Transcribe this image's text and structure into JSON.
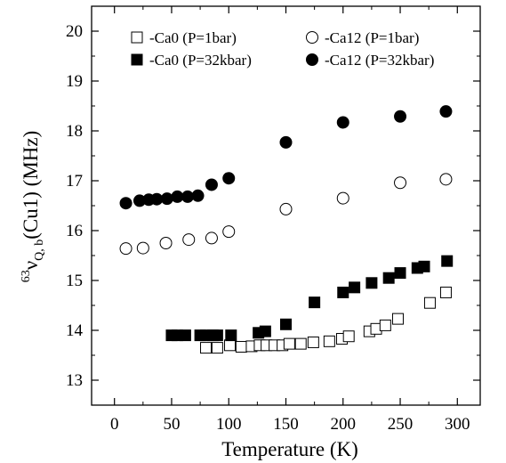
{
  "chart_data": {
    "type": "scatter",
    "xlabel": "Temperature (K)",
    "ylabel": {
      "sup": "63",
      "symbol": "ν",
      "sub": "Q, b",
      "rest": "(Cu1) (MHz)"
    },
    "xlim": [
      -20,
      320
    ],
    "ylim": [
      12.5,
      20.5
    ],
    "xticks": [
      "0",
      "50",
      "100",
      "150",
      "200",
      "250",
      "300"
    ],
    "yticks": [
      "13",
      "14",
      "15",
      "16",
      "17",
      "18",
      "19",
      "20"
    ],
    "grid": false,
    "legend_position": "top",
    "series": [
      {
        "name": "-Ca0 (P=1bar)",
        "marker": "open-square",
        "color": "#000000",
        "x": [
          80,
          90,
          101,
          111,
          120,
          127,
          133,
          140,
          147,
          153,
          163,
          174,
          188,
          199,
          205,
          223,
          229,
          237,
          248,
          276,
          290
        ],
        "y": [
          13.65,
          13.65,
          13.7,
          13.67,
          13.68,
          13.7,
          13.7,
          13.7,
          13.7,
          13.73,
          13.73,
          13.76,
          13.78,
          13.83,
          13.88,
          13.98,
          14.03,
          14.1,
          14.23,
          14.55,
          14.76
        ]
      },
      {
        "name": "-Ca0 (P=32kbar)",
        "marker": "filled-square",
        "color": "#000000",
        "x": [
          50,
          55,
          62,
          75,
          80,
          86,
          90,
          102,
          126,
          132,
          150,
          175,
          200,
          210,
          225,
          240,
          250,
          265,
          271,
          291
        ],
        "y": [
          13.9,
          13.9,
          13.9,
          13.9,
          13.9,
          13.9,
          13.9,
          13.9,
          13.95,
          13.98,
          14.12,
          14.56,
          14.76,
          14.86,
          14.95,
          15.05,
          15.15,
          15.25,
          15.28,
          15.39
        ]
      },
      {
        "name": "-Ca12 (P=1bar)",
        "marker": "open-circle",
        "color": "#000000",
        "x": [
          10,
          25,
          45,
          65,
          85,
          100,
          150,
          200,
          250,
          290
        ],
        "y": [
          15.64,
          15.65,
          15.75,
          15.82,
          15.85,
          15.98,
          16.43,
          16.65,
          16.96,
          17.03
        ]
      },
      {
        "name": "-Ca12 (P=32kbar)",
        "marker": "filled-circle",
        "color": "#000000",
        "x": [
          10,
          22,
          30,
          37,
          46,
          55,
          64,
          73,
          85,
          100,
          150,
          200,
          250,
          290
        ],
        "y": [
          16.55,
          16.6,
          16.62,
          16.63,
          16.64,
          16.68,
          16.68,
          16.7,
          16.92,
          17.05,
          17.77,
          18.17,
          18.29,
          18.39
        ]
      }
    ]
  }
}
